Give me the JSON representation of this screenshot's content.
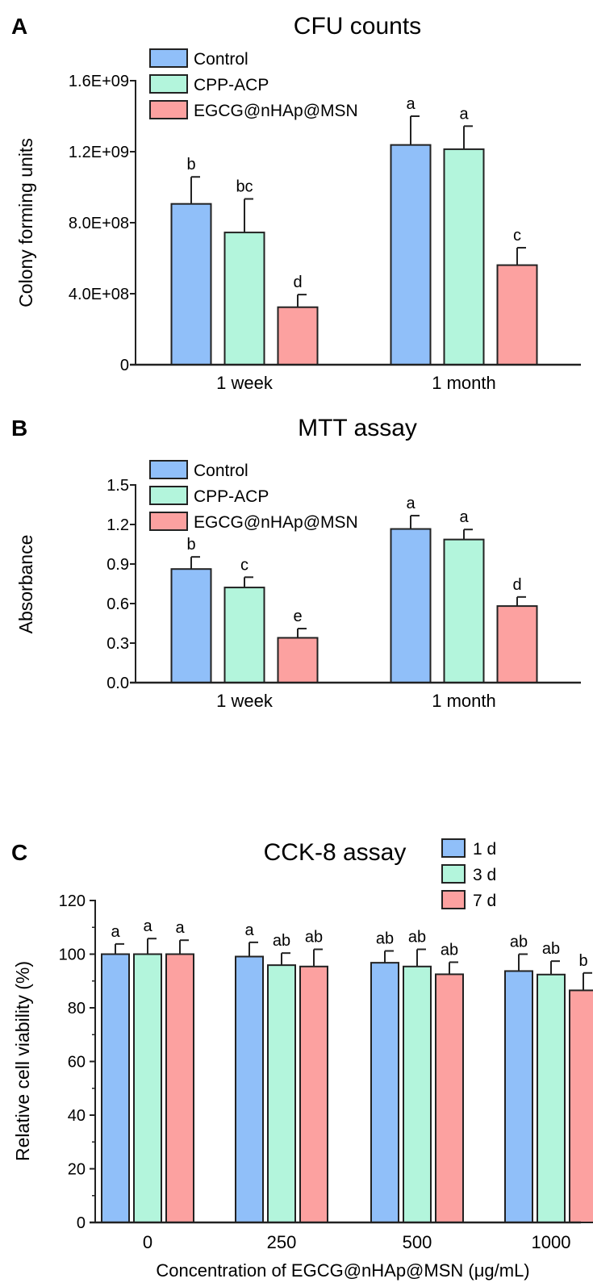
{
  "colors": {
    "blue": "#90bff9",
    "green": "#b3f5dc",
    "pink": "#fca1a0",
    "axis": "#222222"
  },
  "chart_data": [
    {
      "panel": "A",
      "type": "bar",
      "title": "CFU counts",
      "xlabel": "",
      "ylabel": "Colony forming units",
      "ylim": [
        0,
        1600000000
      ],
      "yticks": [
        0,
        400000000,
        800000000,
        1200000000,
        1600000000
      ],
      "ytick_labels": [
        "0",
        "4.0E+08",
        "8.0E+08",
        "1.2E+09",
        "1.6E+09"
      ],
      "categories": [
        "1 week",
        "1 month"
      ],
      "legend_position": "top-left",
      "series": [
        {
          "name": "Control",
          "color": "#90bff9",
          "values": [
            906000000,
            1238000000
          ],
          "error_upper": [
            1058000000,
            1400000000
          ],
          "letters": [
            "b",
            "a"
          ]
        },
        {
          "name": "CPP-ACP",
          "color": "#b3f5dc",
          "values": [
            745000000,
            1214000000
          ],
          "error_upper": [
            934000000,
            1344000000
          ],
          "letters": [
            "bc",
            "a"
          ]
        },
        {
          "name": "EGCG@nHAp@MSN",
          "color": "#fca1a0",
          "values": [
            324000000,
            561000000
          ],
          "error_upper": [
            395000000,
            659000000
          ],
          "letters": [
            "d",
            "c"
          ]
        }
      ]
    },
    {
      "panel": "B",
      "type": "bar",
      "title": "MTT assay",
      "xlabel": "",
      "ylabel": "Absorbance",
      "ylim": [
        0,
        1.5
      ],
      "yticks": [
        0,
        0.3,
        0.6,
        0.9,
        1.2,
        1.5
      ],
      "ytick_labels": [
        "0.0",
        "0.3",
        "0.6",
        "0.9",
        "1.2",
        "1.5"
      ],
      "categories": [
        "1 week",
        "1 month"
      ],
      "legend_position": "top-left",
      "series": [
        {
          "name": "Control",
          "color": "#90bff9",
          "values": [
            0.862,
            1.166
          ],
          "error_upper": [
            0.954,
            1.267
          ],
          "letters": [
            "b",
            "a"
          ]
        },
        {
          "name": "CPP-ACP",
          "color": "#b3f5dc",
          "values": [
            0.722,
            1.086
          ],
          "error_upper": [
            0.8,
            1.162
          ],
          "letters": [
            "c",
            "a"
          ]
        },
        {
          "name": "EGCG@nHAp@MSN",
          "color": "#fca1a0",
          "values": [
            0.34,
            0.581
          ],
          "error_upper": [
            0.41,
            0.65
          ],
          "letters": [
            "e",
            "d"
          ]
        }
      ]
    },
    {
      "panel": "C",
      "type": "bar",
      "title": "CCK-8 assay",
      "xlabel": "Concentration of EGCG@nHAp@MSN (μg/mL)",
      "ylabel": "Relative cell viability (%)",
      "ylim": [
        0,
        120
      ],
      "yticks": [
        0,
        20,
        40,
        60,
        80,
        100,
        120
      ],
      "ytick_labels": [
        "0",
        "20",
        "40",
        "60",
        "80",
        "100",
        "120"
      ],
      "minor_tick_step": 10,
      "categories": [
        "0",
        "250",
        "500",
        "1000"
      ],
      "legend_position": "top-right",
      "series": [
        {
          "name": "1 d",
          "color": "#90bff9",
          "values": [
            100,
            99.1,
            96.8,
            93.7
          ],
          "error_upper": [
            103.8,
            104.4,
            101.2,
            100
          ],
          "letters": [
            "a",
            "a",
            "ab",
            "ab"
          ]
        },
        {
          "name": "3 d",
          "color": "#b3f5dc",
          "values": [
            100,
            95.9,
            95.4,
            92.4
          ],
          "error_upper": [
            105.8,
            100.4,
            101.8,
            97.4
          ],
          "letters": [
            "a",
            "ab",
            "ab",
            "ab"
          ]
        },
        {
          "name": "7 d",
          "color": "#fca1a0",
          "values": [
            100,
            95.4,
            92.5,
            86.5
          ],
          "error_upper": [
            105.2,
            101.8,
            97,
            93
          ],
          "letters": [
            "a",
            "ab",
            "ab",
            "b"
          ]
        }
      ]
    }
  ]
}
